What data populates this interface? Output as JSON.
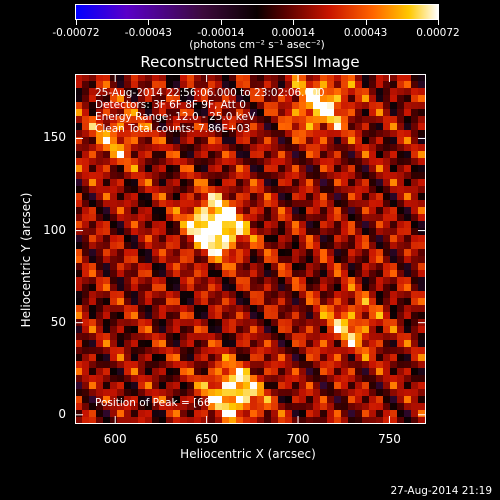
{
  "chart_data": {
    "type": "heatmap",
    "title": "Reconstructed RHESSI Image",
    "xlabel": "Heliocentric X (arcsec)",
    "ylabel": "Heliocentric Y (arcsec)",
    "xlim": [
      578,
      770
    ],
    "ylim": [
      -5,
      185
    ],
    "xticks": [
      600,
      650,
      700,
      750
    ],
    "yticks": [
      0,
      50,
      100,
      150
    ],
    "colorbar": {
      "ticks": [
        "-0.00072",
        "-0.00043",
        "-0.00014",
        "0.00014",
        "0.00043",
        "0.00072"
      ],
      "units": "(photons cm⁻² s⁻¹ asec⁻²)",
      "colors": [
        "#0000ff",
        "#5a00c8",
        "#3c0a3c",
        "#0a0000",
        "#5a0000",
        "#c81400",
        "#ff6400",
        "#ffc800",
        "#ffffff"
      ]
    },
    "sources": [
      {
        "x": 655,
        "y": 102,
        "intensity": 0.00072
      },
      {
        "x": 712,
        "y": 168,
        "intensity": 0.00052
      },
      {
        "x": 665,
        "y": 12,
        "intensity": 0.00055
      },
      {
        "x": 728,
        "y": 48,
        "intensity": 0.00035
      },
      {
        "x": 600,
        "y": 150,
        "intensity": 0.0003
      }
    ],
    "annotations": [
      "25-Aug-2014 22:56:06.000 to 23:02:06.000",
      "Detectors: 3F 6F 8F 9F, Att 0",
      "Energy Range: 12.0 - 25.0 keV",
      "Clean    Total counts: 7.86E+03"
    ],
    "peak_label": "Position of Peak = [66",
    "peak_value": "",
    "timestamp": "27-Aug-2014 21:19"
  }
}
